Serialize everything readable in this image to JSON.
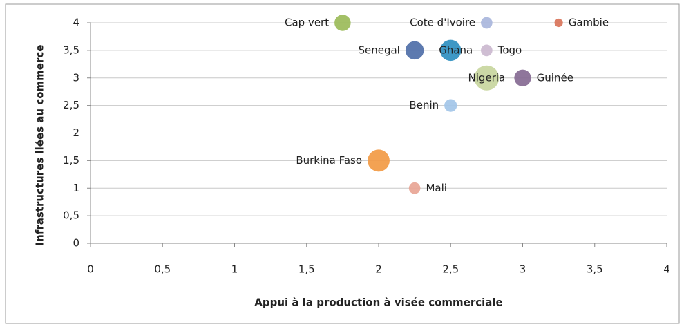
{
  "chart_data": {
    "type": "bubble",
    "x_label": "Appui à la production à visée commerciale",
    "y_label": "Infrastructures liées au commerce",
    "xlim": [
      0,
      4
    ],
    "xticks": [
      0,
      {
        "value": 0.5,
        "label": "0,5"
      },
      1,
      {
        "value": 1.5,
        "label": "1,5"
      },
      2,
      {
        "value": 2.5,
        "label": "2,5"
      },
      3,
      {
        "value": 3.5,
        "label": "3,5"
      },
      4
    ],
    "ylim": [
      0,
      4
    ],
    "yticks": [
      0,
      {
        "value": 0.5,
        "label": "0,5"
      },
      1,
      {
        "value": 1.5,
        "label": "1,5"
      },
      2,
      {
        "value": 2.5,
        "label": "2,5"
      },
      3,
      {
        "value": 3.5,
        "label": "3,5"
      },
      4
    ],
    "grid": true,
    "points": [
      {
        "name": "Cap vert",
        "x": 1.75,
        "y": 4,
        "size": 3,
        "color": "#9bbb59"
      },
      {
        "name": "Cote d'Ivoire",
        "x": 2.75,
        "y": 4,
        "size": 1.5,
        "color": "#a9b6dc"
      },
      {
        "name": "Gambie",
        "x": 3.25,
        "y": 4,
        "size": 0.8,
        "color": "#d9745a"
      },
      {
        "name": "Senegal",
        "x": 2.25,
        "y": 3.5,
        "size": 3.8,
        "color": "#4f6fa8"
      },
      {
        "name": "Ghana",
        "x": 2.5,
        "y": 3.5,
        "size": 5,
        "color": "#2e8fc0"
      },
      {
        "name": "Togo",
        "x": 2.75,
        "y": 3.5,
        "size": 1.5,
        "color": "#cbb8cf"
      },
      {
        "name": "Nigeria",
        "x": 2.75,
        "y": 3,
        "size": 7,
        "color": "#c8d69e"
      },
      {
        "name": "Guinée",
        "x": 3,
        "y": 3,
        "size": 3.2,
        "color": "#866a92"
      },
      {
        "name": "Benin",
        "x": 2.5,
        "y": 2.5,
        "size": 1.8,
        "color": "#a3c6e8"
      },
      {
        "name": "Burkina Faso",
        "x": 2,
        "y": 1.5,
        "size": 5.5,
        "color": "#f29a44"
      },
      {
        "name": "Mali",
        "x": 2.25,
        "y": 1,
        "size": 1.5,
        "color": "#e8a595"
      }
    ]
  }
}
